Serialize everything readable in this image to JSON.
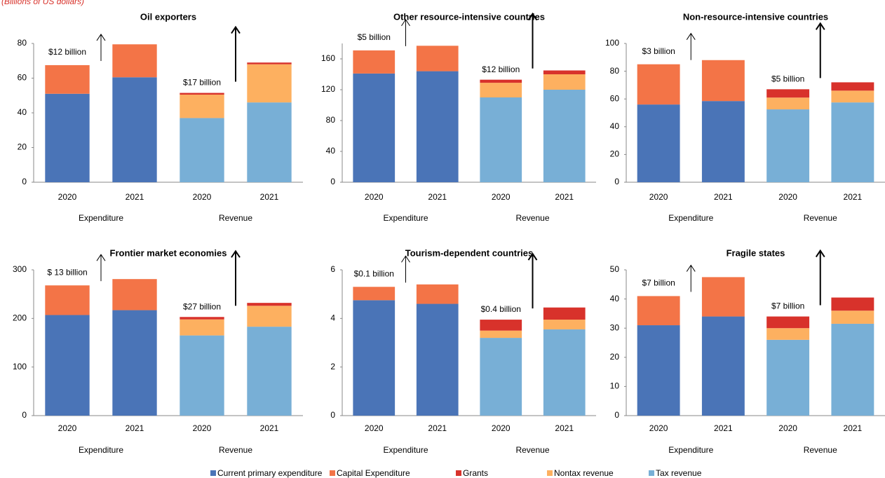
{
  "subtitle": "(Billions of US dollars)",
  "legend": [
    {
      "name": "Current primary expenditure",
      "color": "#4a74b7"
    },
    {
      "name": "Capital Expenditure",
      "color": "#f37447"
    },
    {
      "name": "Grants",
      "color": "#d8322b"
    },
    {
      "name": "Nontax revenue",
      "color": "#fdb060"
    },
    {
      "name": "Tax revenue",
      "color": "#78afd6"
    }
  ],
  "chart_data": [
    {
      "type": "bar",
      "title": "Oil exporters",
      "categories": [
        "2020",
        "2021",
        "2020",
        "2021"
      ],
      "group_labels": [
        "Expenditure",
        "Revenue"
      ],
      "annotations": [
        "$12 billion",
        "$17 billion"
      ],
      "ylim": [
        0,
        80
      ],
      "yticks": [
        0,
        20,
        40,
        60,
        80
      ],
      "series": [
        {
          "values": [
            51,
            60.5,
            null,
            null
          ]
        },
        {
          "values": [
            16.5,
            19,
            null,
            null
          ]
        },
        {
          "values": [
            null,
            null,
            1,
            1
          ]
        },
        {
          "values": [
            null,
            null,
            13.5,
            22
          ]
        },
        {
          "values": [
            null,
            null,
            37,
            46
          ]
        }
      ]
    },
    {
      "type": "bar",
      "title": "Other resource-intensive countries",
      "categories": [
        "2020",
        "2021",
        "2020",
        "2021"
      ],
      "group_labels": [
        "Expenditure",
        "Revenue"
      ],
      "annotations": [
        "$5  billion",
        "$12 billion"
      ],
      "ylim": [
        0,
        180
      ],
      "yticks": [
        0,
        40,
        80,
        120,
        160
      ],
      "series": [
        {
          "values": [
            141,
            144,
            null,
            null
          ]
        },
        {
          "values": [
            30,
            33,
            null,
            null
          ]
        },
        {
          "values": [
            null,
            null,
            4,
            5
          ]
        },
        {
          "values": [
            null,
            null,
            19,
            20
          ]
        },
        {
          "values": [
            null,
            null,
            110,
            120
          ]
        }
      ]
    },
    {
      "type": "bar",
      "title": "Non-resource-intensive countries",
      "categories": [
        "2020",
        "2021",
        "2020",
        "2021"
      ],
      "group_labels": [
        "Expenditure",
        "Revenue"
      ],
      "annotations": [
        "$3 billion",
        "$5 billion"
      ],
      "ylim": [
        0,
        100
      ],
      "yticks": [
        0,
        20,
        40,
        60,
        80,
        100
      ],
      "series": [
        {
          "values": [
            56,
            58.5,
            null,
            null
          ]
        },
        {
          "values": [
            29,
            29.5,
            null,
            null
          ]
        },
        {
          "values": [
            null,
            null,
            6,
            6
          ]
        },
        {
          "values": [
            null,
            null,
            8.5,
            8.5
          ]
        },
        {
          "values": [
            null,
            null,
            52.5,
            57.5
          ]
        }
      ]
    },
    {
      "type": "bar",
      "title": "Frontier market economies",
      "categories": [
        "2020",
        "2021",
        "2020",
        "2021"
      ],
      "group_labels": [
        "Expenditure",
        "Revenue"
      ],
      "annotations": [
        "$ 13 billion",
        "$27 billion"
      ],
      "ylim": [
        0,
        300
      ],
      "yticks": [
        0,
        100,
        200,
        300
      ],
      "series": [
        {
          "values": [
            207,
            217,
            null,
            null
          ]
        },
        {
          "values": [
            61,
            64,
            null,
            null
          ]
        },
        {
          "values": [
            null,
            null,
            5,
            6
          ]
        },
        {
          "values": [
            null,
            null,
            33,
            43
          ]
        },
        {
          "values": [
            null,
            null,
            165,
            183
          ]
        }
      ]
    },
    {
      "type": "bar",
      "title": "Tourism-dependent countries",
      "categories": [
        "2020",
        "2021",
        "2020",
        "2021"
      ],
      "group_labels": [
        "Expenditure",
        "Revenue"
      ],
      "annotations": [
        "$0.1 billion",
        "$0.4 billion"
      ],
      "ylim": [
        0,
        6
      ],
      "yticks": [
        0,
        2,
        4,
        6
      ],
      "series": [
        {
          "values": [
            4.75,
            4.6,
            null,
            null
          ]
        },
        {
          "values": [
            0.55,
            0.8,
            null,
            null
          ]
        },
        {
          "values": [
            null,
            null,
            0.45,
            0.5
          ]
        },
        {
          "values": [
            null,
            null,
            0.3,
            0.4
          ]
        },
        {
          "values": [
            null,
            null,
            3.2,
            3.55
          ]
        }
      ]
    },
    {
      "type": "bar",
      "title": "Fragile states",
      "categories": [
        "2020",
        "2021",
        "2020",
        "2021"
      ],
      "group_labels": [
        "Expenditure",
        "Revenue"
      ],
      "annotations": [
        "$7 billion",
        "$7 billion"
      ],
      "ylim": [
        0,
        50
      ],
      "yticks": [
        0,
        10,
        20,
        30,
        40,
        50
      ],
      "series": [
        {
          "values": [
            31,
            34,
            null,
            null
          ]
        },
        {
          "values": [
            10,
            13.5,
            null,
            null
          ]
        },
        {
          "values": [
            null,
            null,
            4,
            4.5
          ]
        },
        {
          "values": [
            null,
            null,
            4,
            4.5
          ]
        },
        {
          "values": [
            null,
            null,
            26,
            31.5
          ]
        }
      ]
    }
  ]
}
